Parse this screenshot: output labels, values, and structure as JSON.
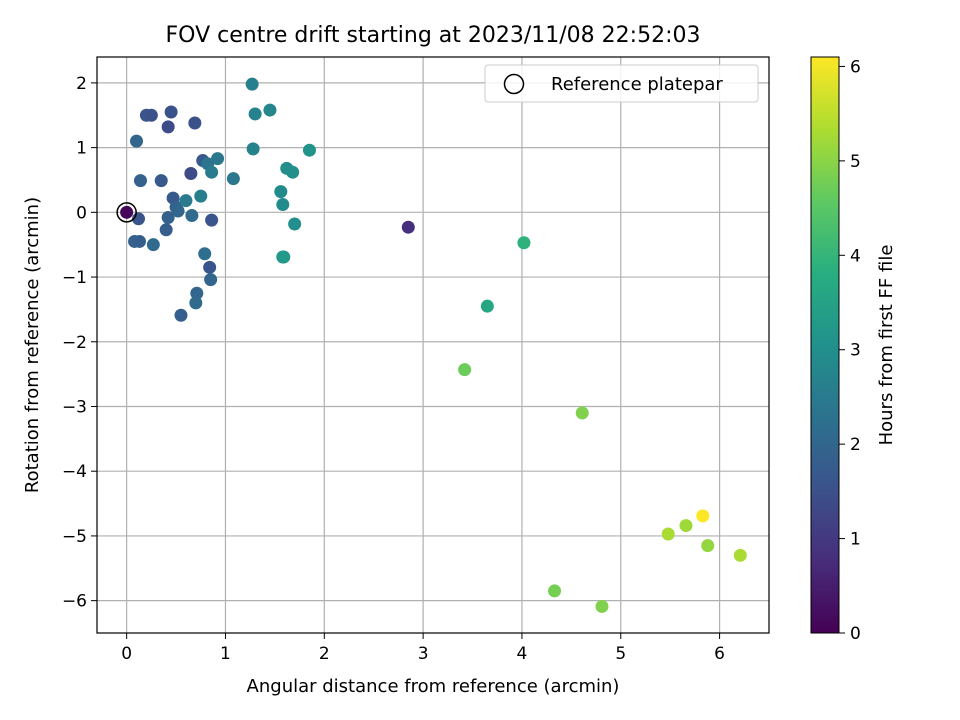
{
  "chart_data": {
    "type": "scatter",
    "title": "FOV centre drift starting at 2023/11/08 22:52:03",
    "xlabel": "Angular distance from reference (arcmin)",
    "ylabel": "Rotation from reference (arcmin)",
    "xlim": [
      -0.3,
      6.5
    ],
    "ylim": [
      -6.5,
      2.4
    ],
    "xticks": [
      0,
      1,
      2,
      3,
      4,
      5,
      6
    ],
    "yticks": [
      -6,
      -5,
      -4,
      -3,
      -2,
      -1,
      0,
      1,
      2
    ],
    "grid": true,
    "legend": {
      "placement": "top-right",
      "entries": [
        "Reference platepar"
      ]
    },
    "reference_point": {
      "x": 0,
      "y": 0
    },
    "colorbar": {
      "label": "Hours from first FF file",
      "colormap": "viridis",
      "range": [
        0,
        6.1
      ],
      "ticks": [
        0,
        1,
        2,
        3,
        4,
        5,
        6
      ]
    },
    "points": [
      {
        "x": 0.0,
        "y": 0.0,
        "c": 0.1
      },
      {
        "x": 2.85,
        "y": -0.23,
        "c": 0.8
      },
      {
        "x": 0.12,
        "y": -0.1,
        "c": 1.6
      },
      {
        "x": 0.08,
        "y": -0.45,
        "c": 1.9
      },
      {
        "x": 0.13,
        "y": -0.45,
        "c": 1.8
      },
      {
        "x": 0.27,
        "y": -0.5,
        "c": 2.1
      },
      {
        "x": 0.1,
        "y": 1.1,
        "c": 2.0
      },
      {
        "x": 0.14,
        "y": 0.49,
        "c": 1.9
      },
      {
        "x": 0.2,
        "y": 1.5,
        "c": 1.6
      },
      {
        "x": 0.25,
        "y": 1.5,
        "c": 1.5
      },
      {
        "x": 0.35,
        "y": 0.49,
        "c": 1.7
      },
      {
        "x": 0.42,
        "y": 1.32,
        "c": 1.4
      },
      {
        "x": 0.45,
        "y": 1.55,
        "c": 1.5
      },
      {
        "x": 0.47,
        "y": 0.22,
        "c": 1.7
      },
      {
        "x": 0.5,
        "y": 0.08,
        "c": 1.9
      },
      {
        "x": 0.52,
        "y": 0.02,
        "c": 2.0
      },
      {
        "x": 0.42,
        "y": -0.08,
        "c": 1.9
      },
      {
        "x": 0.4,
        "y": -0.27,
        "c": 1.8
      },
      {
        "x": 0.6,
        "y": 0.18,
        "c": 2.5
      },
      {
        "x": 0.65,
        "y": 0.6,
        "c": 1.4
      },
      {
        "x": 0.66,
        "y": -0.05,
        "c": 2.1
      },
      {
        "x": 0.69,
        "y": 1.38,
        "c": 1.5
      },
      {
        "x": 0.75,
        "y": 0.25,
        "c": 2.6
      },
      {
        "x": 0.77,
        "y": 0.8,
        "c": 1.7
      },
      {
        "x": 0.82,
        "y": 0.75,
        "c": 2.3
      },
      {
        "x": 0.86,
        "y": 0.62,
        "c": 2.5
      },
      {
        "x": 0.92,
        "y": 0.83,
        "c": 2.4
      },
      {
        "x": 0.86,
        "y": -0.12,
        "c": 1.6
      },
      {
        "x": 0.79,
        "y": -0.64,
        "c": 2.2
      },
      {
        "x": 0.84,
        "y": -0.85,
        "c": 1.6
      },
      {
        "x": 0.85,
        "y": -1.04,
        "c": 2.0
      },
      {
        "x": 0.71,
        "y": -1.25,
        "c": 2.0
      },
      {
        "x": 0.7,
        "y": -1.4,
        "c": 2.1
      },
      {
        "x": 0.55,
        "y": -1.59,
        "c": 1.8
      },
      {
        "x": 1.08,
        "y": 0.52,
        "c": 2.4
      },
      {
        "x": 1.27,
        "y": 1.98,
        "c": 2.6
      },
      {
        "x": 1.3,
        "y": 1.52,
        "c": 2.7
      },
      {
        "x": 1.28,
        "y": 0.98,
        "c": 2.7
      },
      {
        "x": 1.45,
        "y": 1.58,
        "c": 2.8
      },
      {
        "x": 1.56,
        "y": 0.32,
        "c": 2.9
      },
      {
        "x": 1.58,
        "y": 0.12,
        "c": 2.9
      },
      {
        "x": 1.62,
        "y": 0.68,
        "c": 3.0
      },
      {
        "x": 1.68,
        "y": 0.62,
        "c": 3.0
      },
      {
        "x": 1.7,
        "y": -0.18,
        "c": 3.0
      },
      {
        "x": 1.85,
        "y": 0.96,
        "c": 3.1
      },
      {
        "x": 1.58,
        "y": -0.69,
        "c": 3.2
      },
      {
        "x": 1.59,
        "y": -0.69,
        "c": 3.25
      },
      {
        "x": 4.02,
        "y": -0.47,
        "c": 3.9
      },
      {
        "x": 3.65,
        "y": -1.45,
        "c": 3.6
      },
      {
        "x": 3.42,
        "y": -2.43,
        "c": 4.7
      },
      {
        "x": 4.61,
        "y": -3.1,
        "c": 4.9
      },
      {
        "x": 4.33,
        "y": -5.85,
        "c": 4.8
      },
      {
        "x": 4.81,
        "y": -6.09,
        "c": 4.9
      },
      {
        "x": 5.48,
        "y": -4.97,
        "c": 5.3
      },
      {
        "x": 5.66,
        "y": -4.84,
        "c": 5.2
      },
      {
        "x": 5.83,
        "y": -4.69,
        "c": 6.1
      },
      {
        "x": 5.88,
        "y": -5.15,
        "c": 5.1
      },
      {
        "x": 6.21,
        "y": -5.3,
        "c": 5.3
      }
    ]
  }
}
